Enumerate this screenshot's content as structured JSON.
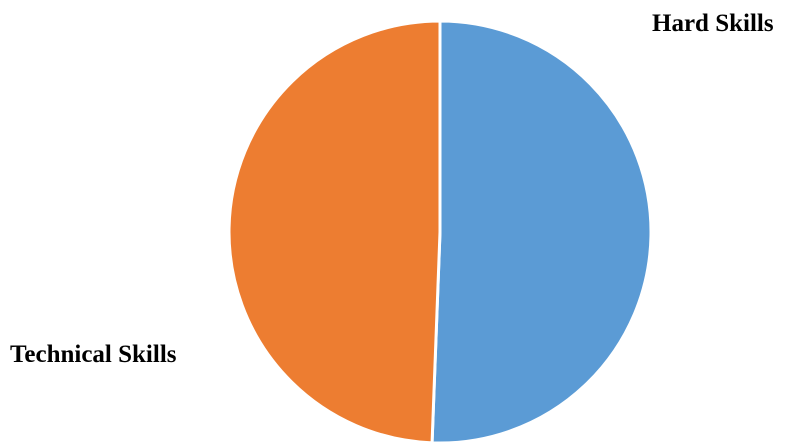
{
  "chart_data": {
    "type": "pie",
    "title": "",
    "categories": [
      "Hard Skills",
      "Technical Skills"
    ],
    "values": [
      50.6,
      49.4
    ],
    "colors": [
      "#5B9BD5",
      "#ED7D31"
    ],
    "start_angle_deg": 0,
    "direction": "clockwise",
    "labels_shown": [
      "Hard Skills",
      "Technical Skills"
    ]
  }
}
